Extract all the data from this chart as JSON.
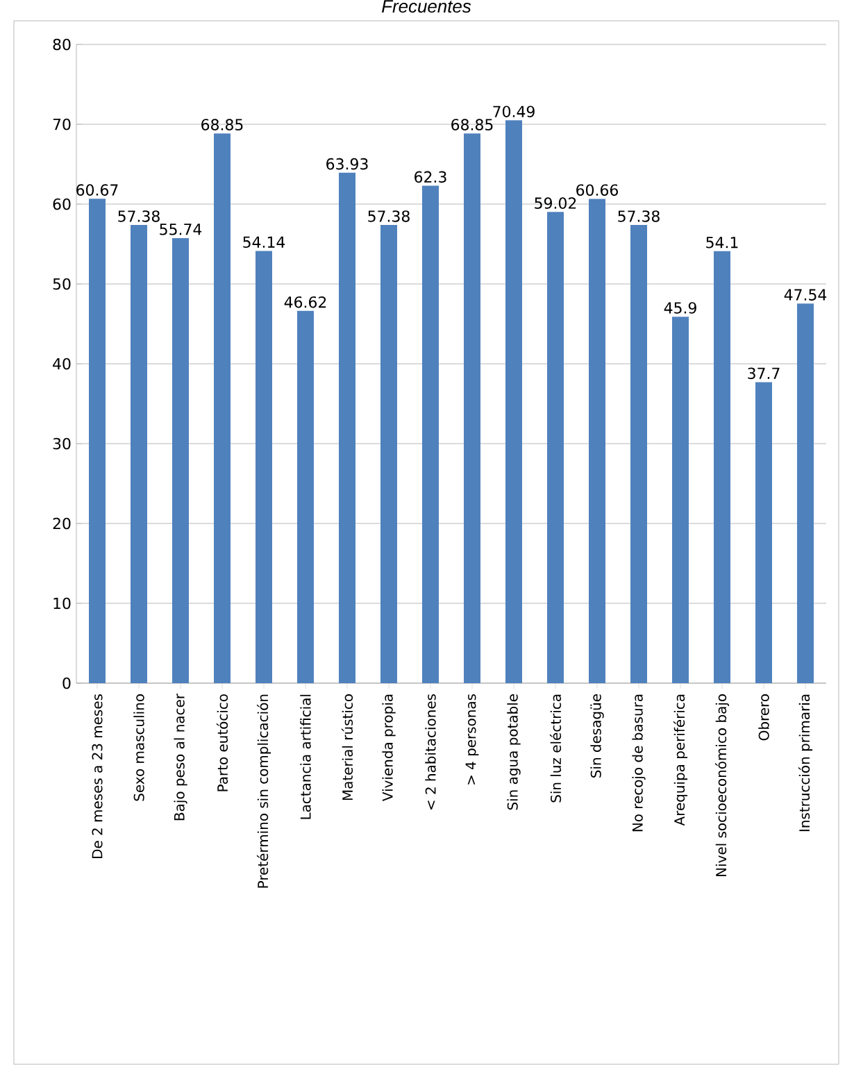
{
  "chart_data": {
    "type": "bar",
    "title": "Frecuentes",
    "categories": [
      "De 2 meses a 23 meses",
      "Sexo masculino",
      "Bajo peso al nacer",
      "Parto eutócico",
      "Pretérmino sin complicación",
      "Lactancia artificial",
      "Material rústico",
      "Vivienda propia",
      "< 2 habitaciones",
      "> 4 personas",
      "Sin agua potable",
      "Sin luz eléctrica",
      "Sin desagüe",
      "No recojo de basura",
      "Arequipa periférica",
      "Nivel socioeconómico bajo",
      "Obrero",
      "Instrucción primaria"
    ],
    "values": [
      60.67,
      57.38,
      55.74,
      68.85,
      54.14,
      46.62,
      63.93,
      57.38,
      62.3,
      68.85,
      70.49,
      59.02,
      60.66,
      57.38,
      45.9,
      54.1,
      37.7,
      47.54
    ],
    "color": "#4f81bd",
    "ylim": [
      0,
      80
    ],
    "yticks": [
      0,
      10,
      20,
      30,
      40,
      50,
      60,
      70,
      80
    ],
    "grid": "y",
    "data_labels": true
  }
}
